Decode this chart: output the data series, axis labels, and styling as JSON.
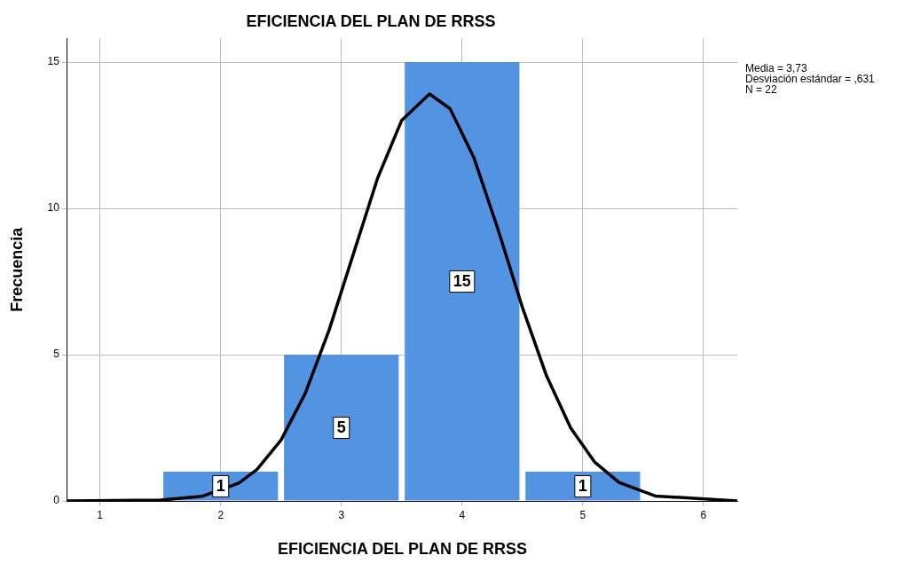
{
  "chart_data": {
    "type": "histogram",
    "title": "EFICIENCIA DEL PLAN DE RRSS",
    "xlabel": "EFICIENCIA DEL PLAN DE RRSS",
    "ylabel": "Frecuencia",
    "bins": [
      1.5,
      2.5,
      3.5,
      4.5,
      5.5
    ],
    "series": [
      {
        "color": "#5294e2",
        "values": [
          1,
          5,
          15,
          1
        ],
        "value_labels": [
          "1",
          "5",
          "15",
          "1"
        ]
      },
      {
        "type": "line",
        "color": "#000000",
        "x": [
          0.73,
          1.5,
          1.85,
          2.15,
          2.3,
          2.5,
          2.7,
          2.9,
          3.1,
          3.3,
          3.5,
          3.73,
          3.9,
          4.1,
          4.3,
          4.5,
          4.7,
          4.9,
          5.1,
          5.3,
          5.6,
          6.28
        ],
        "values": [
          0,
          0.03,
          0.16,
          0.61,
          1.07,
          2.08,
          3.67,
          5.86,
          8.45,
          11.03,
          13.01,
          13.91,
          13.41,
          11.71,
          9.25,
          6.61,
          4.27,
          2.49,
          1.32,
          0.63,
          0.17,
          0
        ]
      }
    ],
    "xlim": [
      0.73,
      6.28
    ],
    "xticks": [
      1,
      2,
      3,
      4,
      5,
      6
    ],
    "ylim": [
      0,
      15.8
    ],
    "yticks": [
      0,
      5,
      10,
      15
    ],
    "grid": true,
    "annotations": [
      "Media = 3,73",
      "Desviación estándar = ,631",
      "N = 22"
    ]
  }
}
